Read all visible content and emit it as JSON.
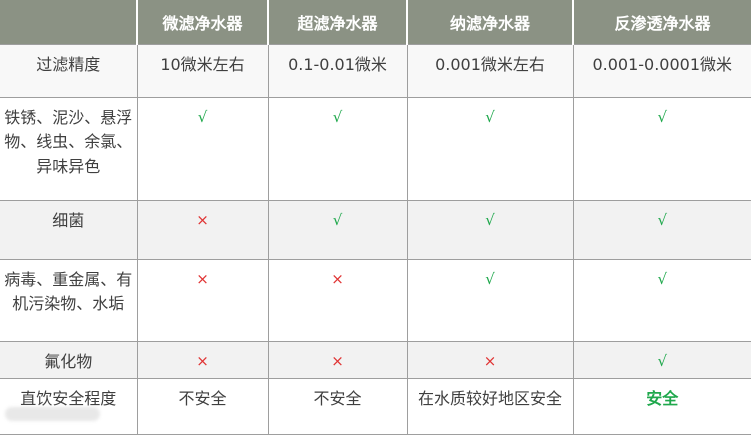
{
  "colors": {
    "header_bg": "#8b9284",
    "header_text": "#ffffff",
    "body_text": "#3f3f3f",
    "border_gray": "#9e9e9e",
    "row_shade": "#f2f2f2",
    "check_green": "#1fa84c",
    "cross_red": "#e03333",
    "safe_green": "#1fa84c"
  },
  "table": {
    "columns": [
      "",
      "微滤净水器",
      "超滤净水器",
      "纳滤净水器",
      "反渗透净水器"
    ],
    "rows": [
      {
        "label": "过滤精度",
        "cells": [
          "10微米左右",
          "0.1-0.01微米",
          "0.001微米左右",
          "0.001-0.0001微米"
        ]
      },
      {
        "label": "铁锈、泥沙、悬浮物、线虫、余氯、异味异色",
        "cells": [
          "√",
          "√",
          "√",
          "√"
        ]
      },
      {
        "label": "细菌",
        "cells": [
          "×",
          "√",
          "√",
          "√"
        ]
      },
      {
        "label": "病毒、重金属、有机污染物、水垢",
        "cells": [
          "×",
          "×",
          "√",
          "√"
        ]
      },
      {
        "label": "氟化物",
        "cells": [
          "×",
          "×",
          "×",
          "√"
        ]
      },
      {
        "label": "直饮安全程度",
        "cells": [
          "不安全",
          "不安全",
          "在水质较好地区安全",
          "安全"
        ]
      }
    ]
  }
}
